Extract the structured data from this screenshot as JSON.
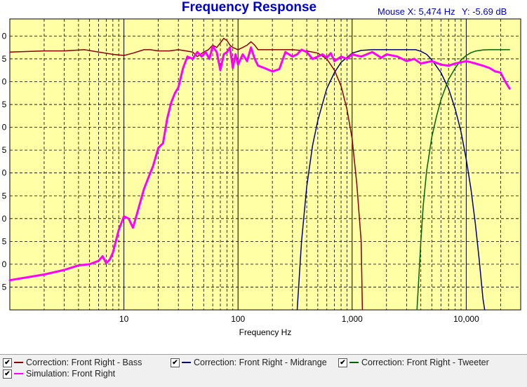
{
  "title": "Frequency Response",
  "readout": {
    "mouse_x_label": "Mouse X:",
    "mouse_x": "5,474 Hz",
    "y_label": "Y:",
    "y": "-5.69 dB"
  },
  "colors": {
    "plot_bg": "#ffffa6",
    "grid": "#000000",
    "bass": "#8b0000",
    "mid": "#00007f",
    "tweeter": "#006400",
    "sim": "#ff00ff"
  },
  "chart_data": {
    "type": "line",
    "title": "Frequency Response",
    "xlabel": "Frequency Hz",
    "ylabel": "",
    "x_scale": "log",
    "xlim": [
      1,
      30000
    ],
    "ylim": [
      0,
      12.75
    ],
    "x_tick_labels": [
      "10",
      "100",
      "1,000",
      "10,000"
    ],
    "x_tick_values": [
      10,
      100,
      1000,
      10000
    ],
    "y_tick_labels": [
      "0",
      "5",
      "0",
      "5",
      "0",
      "5",
      "0",
      "5",
      "0",
      "5",
      "0",
      "5"
    ],
    "y_tick_values": [
      12,
      11,
      10,
      9,
      8,
      7,
      6,
      5,
      4,
      3,
      2,
      1
    ],
    "grid": true,
    "legend_position": "bottom",
    "series": [
      {
        "name": "Correction: Front Right - Bass",
        "color": "#8b0000",
        "x": [
          1,
          2,
          3,
          4.5,
          6,
          8,
          10,
          12,
          15,
          17,
          20,
          25,
          30,
          35,
          40,
          44,
          50,
          55,
          60,
          65,
          70,
          75,
          80,
          85,
          90,
          100,
          110,
          120,
          130,
          140,
          150,
          170,
          200,
          250,
          300,
          400,
          500,
          600,
          700,
          800,
          900,
          1000,
          1100,
          1200,
          1230
        ],
        "y": [
          11.3,
          11.35,
          11.35,
          11.4,
          11.3,
          11.2,
          11.15,
          11.25,
          11.4,
          11.4,
          11.35,
          11.35,
          11.4,
          11.35,
          11.3,
          11.1,
          11.3,
          11.4,
          11.6,
          11.5,
          11.7,
          11.9,
          11.8,
          11.6,
          11.5,
          11.4,
          11.5,
          11.6,
          11.75,
          11.6,
          11.4,
          11.4,
          11.4,
          11.4,
          11.4,
          11.35,
          11.25,
          11.0,
          10.5,
          9.8,
          8.8,
          7.5,
          5.5,
          3.0,
          0
        ]
      },
      {
        "name": "Correction: Front Right - Midrange",
        "color": "#00007f",
        "x": [
          330,
          360,
          400,
          450,
          500,
          600,
          700,
          800,
          1000,
          1200,
          1500,
          2000,
          2500,
          3000,
          3600,
          4000,
          4500,
          5000,
          6000,
          7000,
          8000,
          9000,
          10000,
          11000,
          12000,
          13000,
          14000,
          14500
        ],
        "y": [
          0,
          3.0,
          5.4,
          7.2,
          8.3,
          9.7,
          10.4,
          10.85,
          11.25,
          11.37,
          11.4,
          11.4,
          11.4,
          11.4,
          11.4,
          11.33,
          11.2,
          10.95,
          10.4,
          9.7,
          8.8,
          7.8,
          6.6,
          5.3,
          3.8,
          2.2,
          0.5,
          0
        ]
      },
      {
        "name": "Correction: Front Right - Tweeter",
        "color": "#006400",
        "x": [
          3700,
          3800,
          4000,
          4200,
          4500,
          5000,
          5500,
          6000,
          7000,
          8000,
          9000,
          10000,
          11000,
          12000,
          14000,
          16000,
          20000,
          24000
        ],
        "y": [
          0,
          1.0,
          3.0,
          4.6,
          6.1,
          7.6,
          8.5,
          9.2,
          10.1,
          10.6,
          10.95,
          11.15,
          11.27,
          11.34,
          11.39,
          11.4,
          11.4,
          11.4
        ]
      },
      {
        "name": "Simulation: Front Right",
        "color": "#ff00ff",
        "x": [
          1,
          2,
          3,
          4,
          5,
          6,
          6.5,
          7,
          7.5,
          8,
          9,
          10,
          11,
          12,
          13,
          15,
          17,
          18,
          20,
          22,
          24,
          26,
          28,
          30,
          33,
          36,
          40,
          44,
          48,
          52,
          56,
          60,
          65,
          70,
          75,
          80,
          85,
          90,
          95,
          100,
          110,
          120,
          130,
          140,
          150,
          170,
          200,
          230,
          260,
          300,
          330,
          360,
          400,
          450,
          500,
          550,
          600,
          650,
          700,
          800,
          900,
          1000,
          1200,
          1500,
          1800,
          2000,
          2500,
          3000,
          3500,
          4000,
          5000,
          6000,
          7000,
          8000,
          9000,
          10000,
          11000,
          12000,
          14000,
          16000,
          18000,
          20000,
          22000,
          24000
        ],
        "y": [
          1.3,
          1.55,
          1.75,
          1.95,
          2.0,
          2.15,
          2.35,
          2.05,
          2.2,
          2.5,
          3.5,
          4.1,
          4.0,
          3.6,
          4.2,
          5.3,
          6.0,
          6.3,
          7.1,
          7.3,
          8.4,
          9.1,
          9.5,
          9.75,
          10.6,
          11.1,
          11.0,
          11.3,
          11.1,
          11.3,
          11.0,
          11.55,
          11.3,
          10.5,
          11.2,
          11.3,
          11.5,
          10.6,
          11.2,
          10.75,
          11.2,
          10.9,
          11.5,
          11.0,
          10.7,
          10.6,
          10.45,
          10.55,
          11.3,
          11.1,
          11.2,
          11.4,
          11.3,
          11.0,
          11.1,
          11.2,
          11.05,
          11.25,
          10.9,
          11.1,
          11.0,
          11.2,
          11.1,
          11.3,
          11.05,
          11.2,
          11.1,
          10.9,
          11.0,
          10.8,
          10.9,
          10.75,
          10.7,
          10.8,
          10.85,
          10.9,
          10.85,
          10.8,
          10.7,
          10.6,
          10.45,
          10.4,
          10.0,
          9.7
        ]
      }
    ]
  },
  "legend": [
    {
      "label": "Correction: Front Right - Bass",
      "checked": "✔",
      "color": "#8b0000"
    },
    {
      "label": "Correction: Front Right - Midrange",
      "checked": "✔",
      "color": "#00007f"
    },
    {
      "label": "Correction: Front Right - Tweeter",
      "checked": "✔",
      "color": "#006400"
    },
    {
      "label": "Simulation: Front Right",
      "checked": "✔",
      "color": "#ff00ff"
    }
  ]
}
